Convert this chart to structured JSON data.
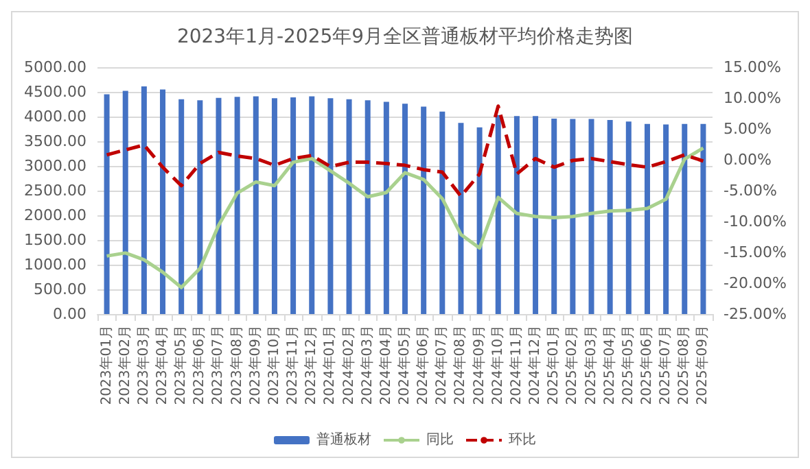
{
  "chart_data": {
    "type": "bar",
    "title": "2023年1月-2025年9月全区普通板材平均价格走势图",
    "categories": [
      "2023年01月",
      "2023年02月",
      "2023年03月",
      "2023年04月",
      "2023年05月",
      "2023年06月",
      "2023年07月",
      "2023年08月",
      "2023年09月",
      "2023年10月",
      "2023年11月",
      "2023年12月",
      "2024年01月",
      "2024年02月",
      "2024年03月",
      "2024年04月",
      "2024年05月",
      "2024年06月",
      "2024年07月",
      "2024年08月",
      "2024年09月",
      "2024年10月",
      "2024年11月",
      "2024年12月",
      "2025年01月",
      "2025年02月",
      "2025年03月",
      "2025年04月",
      "2025年05月",
      "2025年06月",
      "2025年07月",
      "2025年08月",
      "2025年09月"
    ],
    "series": [
      {
        "name": "普通板材",
        "color": "#4472c4",
        "values": [
          4450,
          4520,
          4610,
          4550,
          4350,
          4330,
          4380,
          4400,
          4410,
          4370,
          4390,
          4410,
          4370,
          4350,
          4330,
          4300,
          4260,
          4200,
          4100,
          3870,
          3780,
          4030,
          4010,
          4010,
          3960,
          3950,
          3950,
          3930,
          3900,
          3850,
          3840,
          3850,
          3850
        ]
      },
      {
        "name": "同比",
        "type": "line",
        "axis": "y2",
        "color": "#a9d18e",
        "line_style": "solid",
        "values": [
          -15.6,
          -15.1,
          -16.2,
          -18.2,
          -20.7,
          -17.6,
          -10.6,
          -5.4,
          -3.6,
          -4.2,
          -0.4,
          0.2,
          -1.8,
          -3.8,
          -6.0,
          -5.3,
          -2.1,
          -3.2,
          -6.3,
          -12.1,
          -14.3,
          -6.1,
          -8.7,
          -9.2,
          -9.4,
          -9.2,
          -8.7,
          -8.3,
          -8.2,
          -7.9,
          -6.4,
          0.1,
          1.9
        ]
      },
      {
        "name": "环比",
        "type": "line",
        "axis": "y2",
        "color": "#c00000",
        "line_style": "dashed",
        "values": [
          0.8,
          1.6,
          2.4,
          -1.2,
          -4.2,
          -0.6,
          1.2,
          0.6,
          0.2,
          -0.9,
          0.2,
          0.7,
          -1.1,
          -0.4,
          -0.4,
          -0.6,
          -0.9,
          -1.6,
          -2.0,
          -5.9,
          -2.3,
          8.7,
          -2.3,
          0.2,
          -1.2,
          -0.1,
          0.2,
          -0.3,
          -0.8,
          -1.2,
          -0.3,
          0.8,
          -0.2
        ]
      }
    ],
    "ylim": [
      0,
      5000
    ],
    "yticks": [
      {
        "value": 0,
        "label": "0.00"
      },
      {
        "value": 500,
        "label": "500.00"
      },
      {
        "value": 1000,
        "label": "1000.00"
      },
      {
        "value": 1500,
        "label": "1500.00"
      },
      {
        "value": 2000,
        "label": "2000.00"
      },
      {
        "value": 2500,
        "label": "2500.00"
      },
      {
        "value": 3000,
        "label": "3000.00"
      },
      {
        "value": 3500,
        "label": "3500.00"
      },
      {
        "value": 4000,
        "label": "4000.00"
      },
      {
        "value": 4500,
        "label": "4500.00"
      },
      {
        "value": 5000,
        "label": "5000.00"
      }
    ],
    "y2lim": [
      -25,
      15
    ],
    "y2ticks": [
      {
        "value": -25,
        "label": "-25.00%"
      },
      {
        "value": -20,
        "label": "-20.00%"
      },
      {
        "value": -15,
        "label": "-15.00%"
      },
      {
        "value": -10,
        "label": "-10.00%"
      },
      {
        "value": -5,
        "label": "-5.00%"
      },
      {
        "value": 0,
        "label": "0.00%"
      },
      {
        "value": 5,
        "label": "5.00%"
      },
      {
        "value": 10,
        "label": "10.00%"
      },
      {
        "value": 15,
        "label": "15.00%"
      }
    ],
    "grid": "y",
    "legend": "bottom",
    "marker": "none"
  }
}
